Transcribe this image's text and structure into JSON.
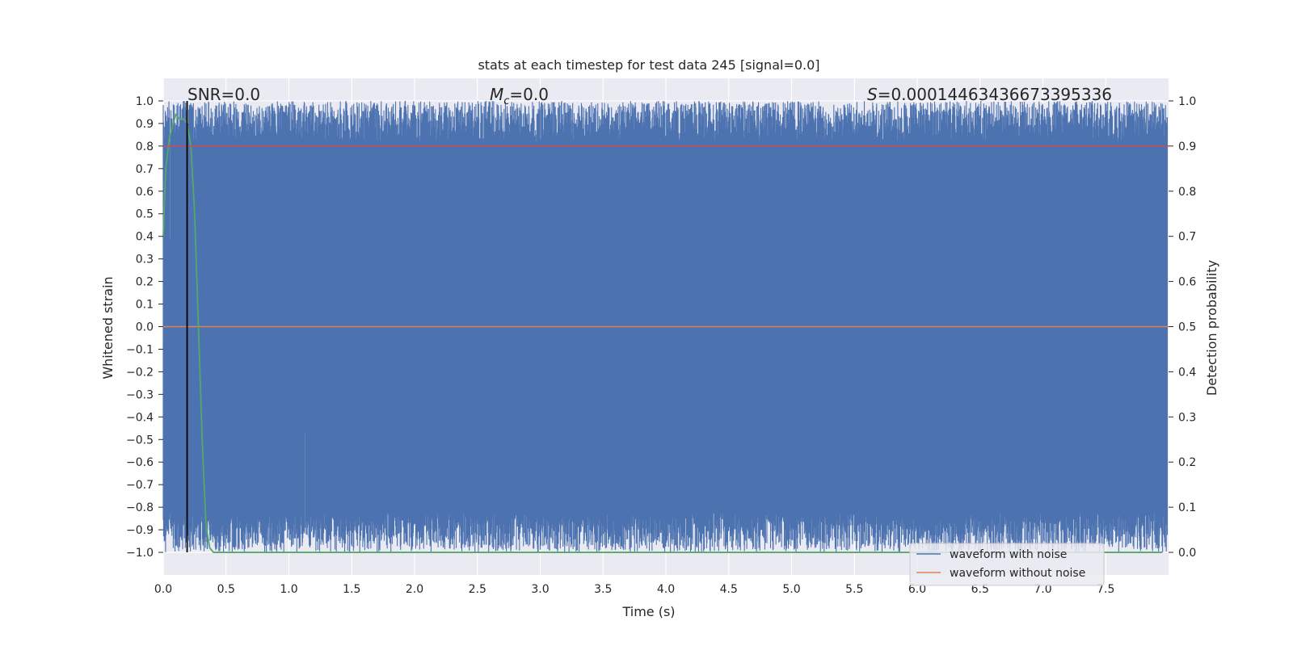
{
  "chart_data": {
    "type": "line",
    "title": "stats at each timestep for test data 245 [signal=0.0]",
    "xlabel": "Time (s)",
    "ylabel": "Whitened strain",
    "y2label": "Detection probability",
    "xlim": [
      0.0,
      8.0
    ],
    "ylim": [
      -1.1,
      1.1
    ],
    "y2lim": [
      -0.05,
      1.05
    ],
    "xticks": [
      0.0,
      0.5,
      1.0,
      1.5,
      2.0,
      2.5,
      3.0,
      3.5,
      4.0,
      4.5,
      5.0,
      5.5,
      6.0,
      6.5,
      7.0,
      7.5
    ],
    "xtick_labels": [
      "0.0",
      "0.5",
      "1.0",
      "1.5",
      "2.0",
      "2.5",
      "3.0",
      "3.5",
      "4.0",
      "4.5",
      "5.0",
      "5.5",
      "6.0",
      "6.5",
      "7.0",
      "7.5"
    ],
    "yticks": [
      1.0,
      0.9,
      0.8,
      0.7,
      0.6,
      0.5,
      0.4,
      0.3,
      0.2,
      0.1,
      0.0,
      -0.1,
      -0.2,
      -0.3,
      -0.4,
      -0.5,
      -0.6,
      -0.7,
      -0.8,
      -0.9,
      -1.0
    ],
    "ytick_labels": [
      "1.0",
      "0.9",
      "0.8",
      "0.7",
      "0.6",
      "0.5",
      "0.4",
      "0.3",
      "0.2",
      "0.1",
      "0.0",
      "−0.1",
      "−0.2",
      "−0.3",
      "−0.4",
      "−0.5",
      "−0.6",
      "−0.7",
      "−0.8",
      "−0.9",
      "−1.0"
    ],
    "y2ticks": [
      1.0,
      0.9,
      0.8,
      0.7,
      0.6,
      0.5,
      0.4,
      0.3,
      0.2,
      0.1,
      0.0
    ],
    "y2tick_labels": [
      "1.0",
      "0.9",
      "0.8",
      "0.7",
      "0.6",
      "0.5",
      "0.4",
      "0.3",
      "0.2",
      "0.1",
      "0.0"
    ],
    "grid": true,
    "legend_position": "lower-right",
    "annotations": {
      "snr": "SNR=0.0",
      "mc_symbol": "M",
      "mc_sub": "c",
      "mc_value": "=0.0",
      "s_symbol": "S",
      "s_value": "=0.00014463436673395336"
    },
    "series": [
      {
        "name": "waveform with noise",
        "color": "#4c72b0",
        "axis": "left",
        "description_of_values": "whitened noise strain clipped to [-1, 1]",
        "range": [
          -1.0,
          1.0
        ]
      },
      {
        "name": "waveform without noise",
        "color": "#dd8452",
        "axis": "left",
        "x": [
          0.0,
          8.0
        ],
        "y": [
          0.0,
          0.0
        ]
      },
      {
        "axis": "right",
        "color": "#55a868",
        "x": [
          0.0,
          0.02,
          0.05,
          0.08,
          0.1,
          0.13,
          0.16,
          0.19,
          0.22,
          0.25,
          0.28,
          0.31,
          0.34,
          0.37,
          0.4,
          1.0,
          2.0,
          3.0,
          4.0,
          5.0,
          6.0,
          7.0,
          7.95
        ],
        "y": [
          0.7,
          0.85,
          0.92,
          0.95,
          0.97,
          0.96,
          0.96,
          0.95,
          0.9,
          0.75,
          0.5,
          0.25,
          0.06,
          0.01,
          0.0,
          0.0,
          0.0,
          0.0,
          0.0,
          0.0,
          0.0,
          0.0,
          0.0
        ]
      },
      {
        "axis": "right",
        "color": "#c44e52",
        "x": [
          0.0,
          8.0
        ],
        "y": [
          0.9,
          0.9
        ]
      }
    ],
    "vertical_line": {
      "x": 0.19,
      "color": "#000000"
    }
  }
}
